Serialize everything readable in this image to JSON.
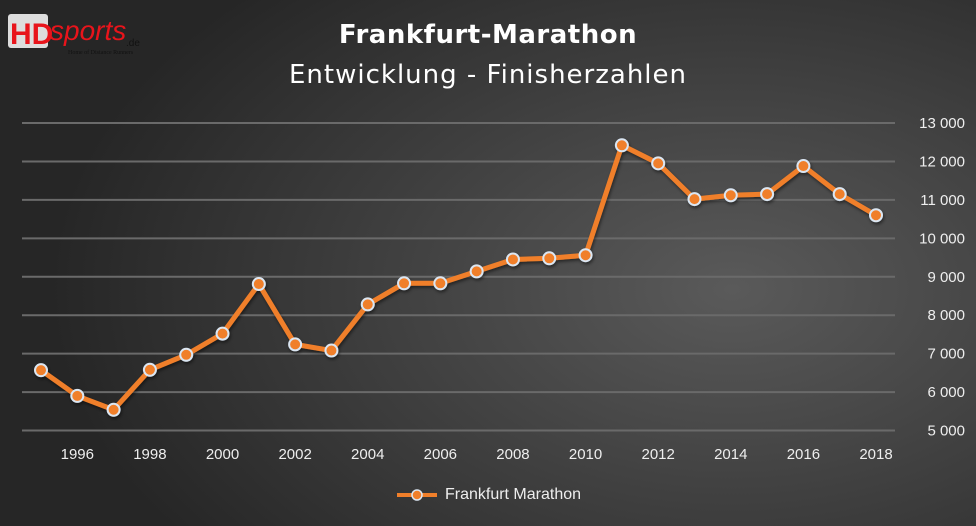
{
  "logo": {
    "text": "HDsports.de",
    "tagline": "Home of Distance Runners"
  },
  "chart_data": {
    "type": "line",
    "title": "Frankfurt-Marathon",
    "subtitle": "Entwicklung - Finisherzahlen",
    "x": [
      1995,
      1996,
      1997,
      1998,
      1999,
      2000,
      2001,
      2002,
      2003,
      2004,
      2005,
      2006,
      2007,
      2008,
      2009,
      2010,
      2011,
      2012,
      2013,
      2014,
      2015,
      2016,
      2017,
      2018
    ],
    "series": [
      {
        "name": "Frankfurt Marathon",
        "color": "#f07f2a",
        "values": [
          6570,
          5900,
          5540,
          6580,
          6970,
          7520,
          8810,
          7240,
          7080,
          8280,
          8830,
          8830,
          9140,
          9450,
          9480,
          9560,
          12420,
          11950,
          11020,
          11120,
          11150,
          11880,
          11150,
          10600
        ]
      }
    ],
    "xticks": [
      "1996",
      "1998",
      "2000",
      "2002",
      "2004",
      "2006",
      "2008",
      "2010",
      "2012",
      "2014",
      "2016",
      "2018"
    ],
    "yticks": [
      "5 000",
      "6 000",
      "7 000",
      "8 000",
      "9 000",
      "10 000",
      "11 000",
      "12 000",
      "13 000"
    ],
    "ylim": [
      5000,
      13000
    ],
    "xlim": [
      1995,
      2018
    ],
    "grid": true,
    "yaxis_side": "right",
    "legend_position": "bottom"
  }
}
